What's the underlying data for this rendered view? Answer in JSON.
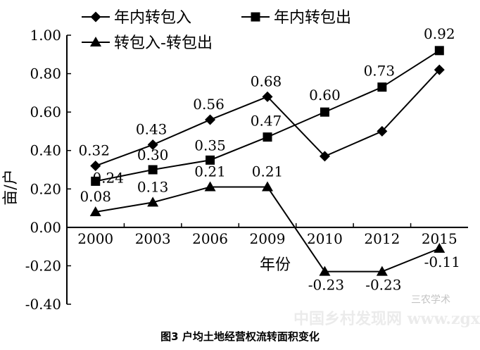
{
  "chart_data": {
    "type": "line",
    "title": "",
    "caption": "图3 户均土地经营权流转面积变化",
    "xlabel": "年份",
    "ylabel": "亩/户",
    "categories": [
      "2000",
      "2003",
      "2006",
      "2009",
      "2010",
      "2012",
      "2015"
    ],
    "ylim": [
      -0.4,
      1.0
    ],
    "yticks": [
      "1.00",
      "0.80",
      "0.60",
      "0.40",
      "0.20",
      "0.00",
      "-0.20",
      "-0.40"
    ],
    "yticks_values": [
      1.0,
      0.8,
      0.6,
      0.4,
      0.2,
      0.0,
      -0.2,
      -0.4
    ],
    "legend_position": "top-left",
    "grid": false,
    "series": [
      {
        "name": "年内转包入",
        "marker": "diamond",
        "values": [
          0.32,
          0.43,
          0.56,
          0.68,
          0.37,
          0.5,
          0.82
        ],
        "labels": [
          "0.32",
          "0.43",
          "0.56",
          "0.68",
          "",
          "",
          ""
        ]
      },
      {
        "name": "年内转包出",
        "marker": "square",
        "values": [
          0.24,
          0.3,
          0.35,
          0.47,
          0.6,
          0.73,
          0.92
        ],
        "labels": [
          "0.24",
          "0.30",
          "0.35",
          "0.47",
          "0.60",
          "0.73",
          "0.92"
        ]
      },
      {
        "name": "转包入-转包出",
        "marker": "triangle",
        "values": [
          0.08,
          0.13,
          0.21,
          0.21,
          -0.23,
          -0.23,
          -0.11
        ],
        "labels": [
          "0.08",
          "0.13",
          "0.21",
          "0.21",
          "-0.23",
          "-0.23",
          "-0.11"
        ]
      }
    ],
    "colors": {
      "line": "#000000",
      "text": "#000000"
    },
    "watermark": {
      "text": "三农学术",
      "site": "中国乡村发现网 www.zgxcfx.com"
    }
  }
}
